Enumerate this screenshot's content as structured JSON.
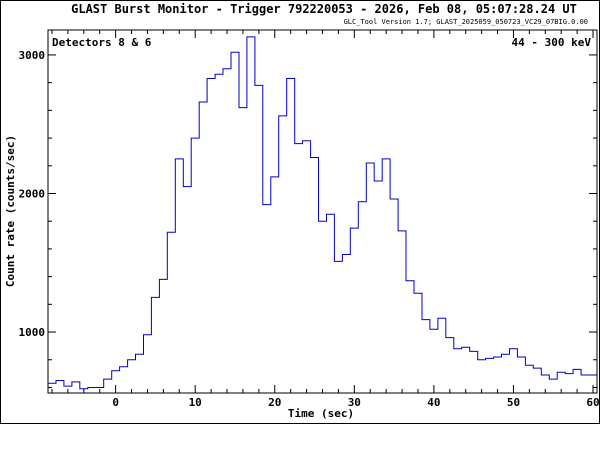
{
  "chart_data": {
    "type": "line",
    "title": "GLAST Burst Monitor  -  Trigger 792220053  -  2026, Feb 08, 05:07:28.24 UT",
    "subtitle": "GLC_Tool Version 1.7; GLAST_2025059_050723_VC29_07BIG.0.00",
    "xlabel": "Time (sec)",
    "ylabel": "Count rate (counts/sec)",
    "xlim": [
      -8.5,
      60.5
    ],
    "ylim": [
      560,
      3180
    ],
    "xticks": [
      0,
      10,
      20,
      30,
      40,
      50,
      60
    ],
    "yticks": [
      1000,
      2000,
      3000
    ],
    "annotation_left": "Detectors 8 & 6",
    "annotation_right": "44 - 300 keV",
    "grid": false,
    "line_color": "#0000cc",
    "bin_edges": [
      -8.5,
      -7.5,
      -6.5,
      -5.5,
      -4.5,
      -3.5,
      -2.5,
      -1.5,
      -0.5,
      0.5,
      1.5,
      2.5,
      3.5,
      4.5,
      5.5,
      6.5,
      7.5,
      8.5,
      9.5,
      10.5,
      11.5,
      12.5,
      13.5,
      14.5,
      15.5,
      16.5,
      17.5,
      18.5,
      19.5,
      20.5,
      21.5,
      22.5,
      23.5,
      24.5,
      25.5,
      26.5,
      27.5,
      28.5,
      29.5,
      30.5,
      31.5,
      32.5,
      33.5,
      34.5,
      35.5,
      36.5,
      37.5,
      38.5,
      39.5,
      40.5,
      41.5,
      42.5,
      43.5,
      44.5,
      45.5,
      46.5,
      47.5,
      48.5,
      49.5,
      50.5,
      51.5,
      52.5,
      53.5,
      54.5,
      55.5,
      56.5,
      57.5,
      58.5,
      59.5,
      60.5
    ],
    "values": [
      630,
      650,
      610,
      640,
      590,
      600,
      600,
      660,
      720,
      750,
      800,
      840,
      980,
      1250,
      1380,
      1720,
      2250,
      2050,
      2400,
      2660,
      2830,
      2860,
      2900,
      3020,
      2620,
      3130,
      2780,
      1920,
      2120,
      2560,
      2830,
      2360,
      2380,
      2260,
      1800,
      1850,
      1510,
      1560,
      1750,
      1940,
      2220,
      2090,
      2250,
      1960,
      1730,
      1370,
      1280,
      1090,
      1020,
      1100,
      960,
      880,
      890,
      860,
      800,
      810,
      820,
      840,
      880,
      820,
      760,
      740,
      690,
      660,
      710,
      700,
      730,
      690,
      690
    ]
  }
}
